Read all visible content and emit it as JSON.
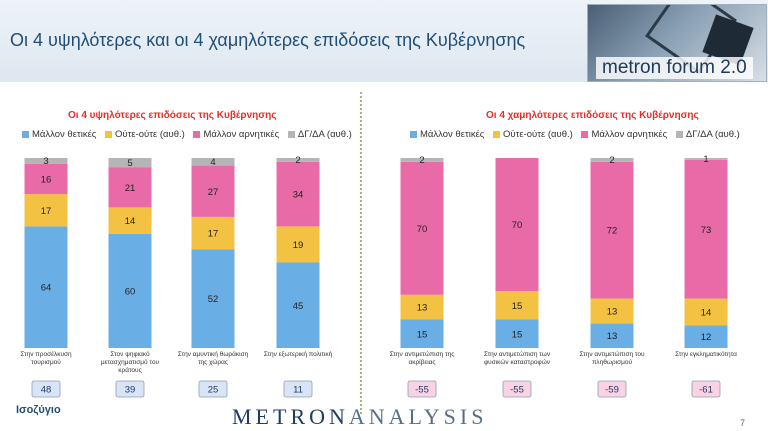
{
  "header": {
    "title": "Οι 4 υψηλότερες και οι 4 χαμηλότερες επιδόσεις της Κυβέρνησης",
    "logo_text": "metron forum 2.0"
  },
  "colors": {
    "positive": "#6aaee6",
    "neutral": "#f4c243",
    "negative": "#e86aa6",
    "dk": "#b5b5b5",
    "badge_pos_bg": "#d9e4f6",
    "badge_neg_bg": "#f9d3e3"
  },
  "footer": {
    "balance_label": "Ισοζύγιο",
    "brand_left": "METRON",
    "brand_right": "ANALYSIS",
    "page_marker": "7"
  },
  "chart_data": [
    {
      "type": "bar",
      "stacked": true,
      "title": "Οι 4 υψηλότερες επιδόσεις της Κυβέρνησης",
      "legend": [
        "Μάλλον θετικές",
        "Ούτε-ούτε  (αυθ.)",
        "Μάλλον αρνητικές",
        "ΔΓ/ΔΑ (αυθ.)"
      ],
      "categories": [
        [
          "Στην προσέλκυση",
          "τουρισμού"
        ],
        [
          "Στον ψηφιακό",
          "μετασχηματισμό του",
          "κράτους"
        ],
        [
          "Στην αμυντική θωράκιση",
          "της χώρας"
        ],
        [
          "Στην εξωτερική πολιτική"
        ]
      ],
      "series": [
        {
          "name": "Μάλλον θετικές",
          "values": [
            64,
            60,
            52,
            45
          ]
        },
        {
          "name": "Ούτε-ούτε  (αυθ.)",
          "values": [
            17,
            14,
            17,
            19
          ]
        },
        {
          "name": "Μάλλον αρνητικές",
          "values": [
            16,
            21,
            27,
            34
          ]
        },
        {
          "name": "ΔΓ/ΔΑ (αυθ.)",
          "values": [
            3,
            5,
            4,
            2
          ]
        }
      ],
      "balance": [
        "48",
        "39",
        "25",
        "11"
      ]
    },
    {
      "type": "bar",
      "stacked": true,
      "title": "Οι 4 χαμηλότερες επιδόσεις της Κυβέρνησης",
      "legend": [
        "Μάλλον θετικές",
        "Ούτε-ούτε  (αυθ.)",
        "Μάλλον αρνητικές",
        "ΔΓ/ΔΑ (αυθ.)"
      ],
      "categories": [
        [
          "Στην αντιμετώπιση της",
          "ακρίβειας"
        ],
        [
          "Στην αντιμετώπιση των",
          "φυσικών καταστροφών"
        ],
        [
          "Στην αντιμετώπιση του",
          "πληθωρισμού"
        ],
        [
          "Στην εγκληματικότητα"
        ]
      ],
      "series": [
        {
          "name": "Μάλλον θετικές",
          "values": [
            15,
            15,
            13,
            12
          ]
        },
        {
          "name": "Ούτε-ούτε  (αυθ.)",
          "values": [
            13,
            15,
            13,
            14
          ]
        },
        {
          "name": "Μάλλον αρνητικές",
          "values": [
            70,
            70,
            72,
            73
          ]
        },
        {
          "name": "ΔΓ/ΔΑ (αυθ.)",
          "values": [
            2,
            0,
            2,
            1
          ]
        }
      ],
      "balance": [
        "-55",
        "-55",
        "-59",
        "-61"
      ]
    }
  ]
}
